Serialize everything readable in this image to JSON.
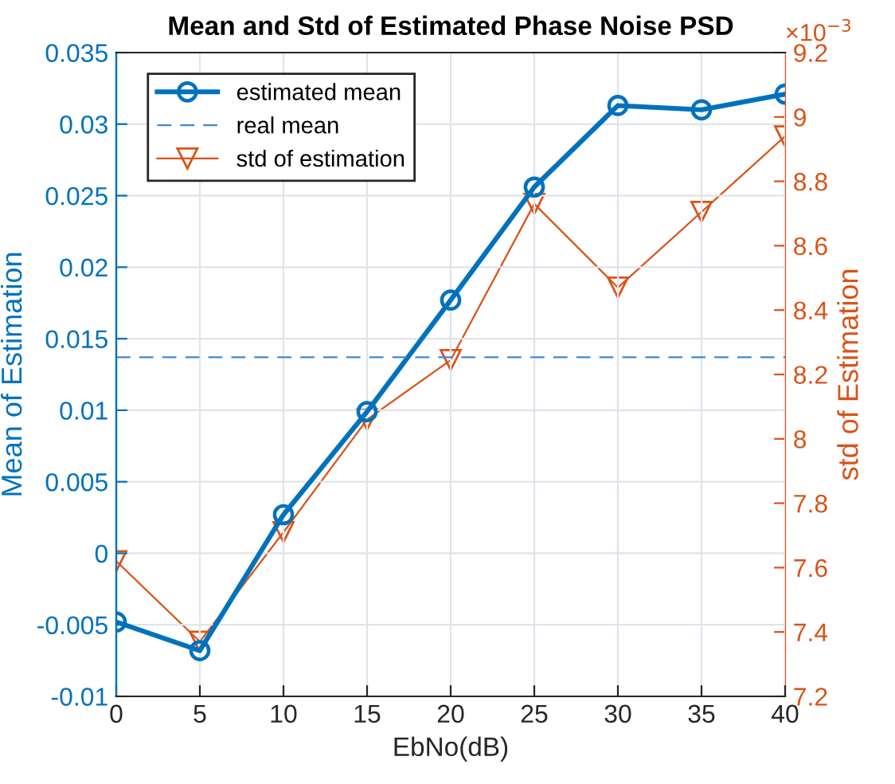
{
  "chart_data": {
    "type": "line",
    "title": "Mean and Std of Estimated Phase Noise PSD",
    "xlabel": "EbNo(dB)",
    "ylabel": "Mean of Estimation",
    "y2label": "std of Estimation",
    "x": [
      0,
      5,
      10,
      15,
      20,
      25,
      30,
      35,
      40
    ],
    "series": [
      {
        "name": "estimated mean",
        "color": "#0072bd",
        "marker": "circle",
        "line_style": "solid",
        "values": [
          -0.0048,
          -0.0068,
          0.0027,
          0.0099,
          0.0177,
          0.0256,
          0.0313,
          0.031,
          0.0321
        ]
      },
      {
        "name": "real mean",
        "color": "#3b8bd0",
        "marker": "none",
        "line_style": "dashed",
        "values": [
          0.0137,
          0.0137,
          0.0137,
          0.0137,
          0.0137,
          0.0137,
          0.0137,
          0.0137,
          0.0137
        ]
      },
      {
        "name": "std of estimation",
        "color": "#d95319",
        "marker": "triangle",
        "line_style": "solid",
        "axis": "y2",
        "values": [
          7.62,
          7.37,
          7.71,
          8.06,
          8.245,
          8.73,
          8.47,
          8.705,
          8.94
        ]
      }
    ],
    "xlim": [
      0,
      40
    ],
    "xticks": [
      0,
      5,
      10,
      15,
      20,
      25,
      30,
      35,
      40
    ],
    "ylim": [
      -0.01,
      0.035
    ],
    "yticks": [
      -0.01,
      -0.005,
      0,
      0.005,
      0.01,
      0.015,
      0.02,
      0.025,
      0.03,
      0.035
    ],
    "y2lim": [
      7.2,
      9.2
    ],
    "y2ticks": [
      7.2,
      7.4,
      7.6,
      7.8,
      8,
      8.2,
      8.4,
      8.6,
      8.8,
      9,
      9.2
    ],
    "annotations": [
      "×10$^{−3}$"
    ],
    "grid": true,
    "legend": "top left"
  }
}
